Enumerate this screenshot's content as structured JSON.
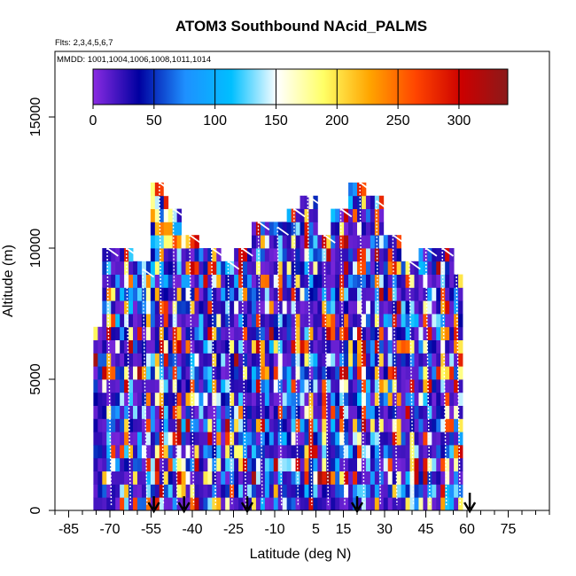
{
  "chart_data": {
    "type": "heatmap",
    "title": "ATOM3 Southbound NAcid_PALMS",
    "flights_label": "Flts: 2,3,4,5,6,7",
    "mmdd_label": "MMDD: 1001,1004,1006,1008,1011,1014",
    "xlabel": "Latitude (deg N)",
    "ylabel": "Altitude (m)",
    "xlim": [
      -90,
      90
    ],
    "ylim": [
      0,
      17500
    ],
    "x_ticks": [
      -85,
      -70,
      -55,
      -40,
      -25,
      -10,
      5,
      15,
      30,
      45,
      60,
      75
    ],
    "x_tick_labels": [
      "-85",
      "-70",
      "-55",
      "-40",
      "-25",
      "-10",
      "5",
      "15",
      "30",
      "45",
      "60",
      "75"
    ],
    "x_minor_step": 5,
    "y_ticks": [
      0,
      5000,
      10000,
      15000
    ],
    "y_tick_labels": [
      "0",
      "5000",
      "10000",
      "15000"
    ],
    "colorbar": {
      "range": [
        0,
        340
      ],
      "ticks": [
        0,
        50,
        100,
        150,
        200,
        250,
        300
      ],
      "tick_labels": [
        "0",
        "50",
        "100",
        "150",
        "200",
        "250",
        "300"
      ],
      "stops": [
        "#8a2be2",
        "#0000a0",
        "#1e90ff",
        "#00bfff",
        "#ffffff",
        "#ffff66",
        "#ffa500",
        "#ff4500",
        "#cc0000",
        "#8b1a1a"
      ]
    },
    "profile_latitudes": [
      -71,
      -64,
      -58,
      -52,
      -47,
      -41,
      -33,
      -27,
      -22,
      -16,
      -9,
      -3,
      2,
      8,
      14,
      21,
      27,
      33,
      39,
      45,
      51,
      56
    ],
    "profile_top_altitudes": [
      10000,
      10000,
      9200,
      12500,
      11500,
      10500,
      10000,
      9500,
      10000,
      11000,
      10800,
      11500,
      12000,
      10500,
      11500,
      12500,
      11800,
      10500,
      9500,
      10000,
      10000,
      10000
    ],
    "surface_arrow_latitudes": [
      -54,
      -43,
      -20,
      20
    ],
    "tall_arrow_latitude": 61
  }
}
